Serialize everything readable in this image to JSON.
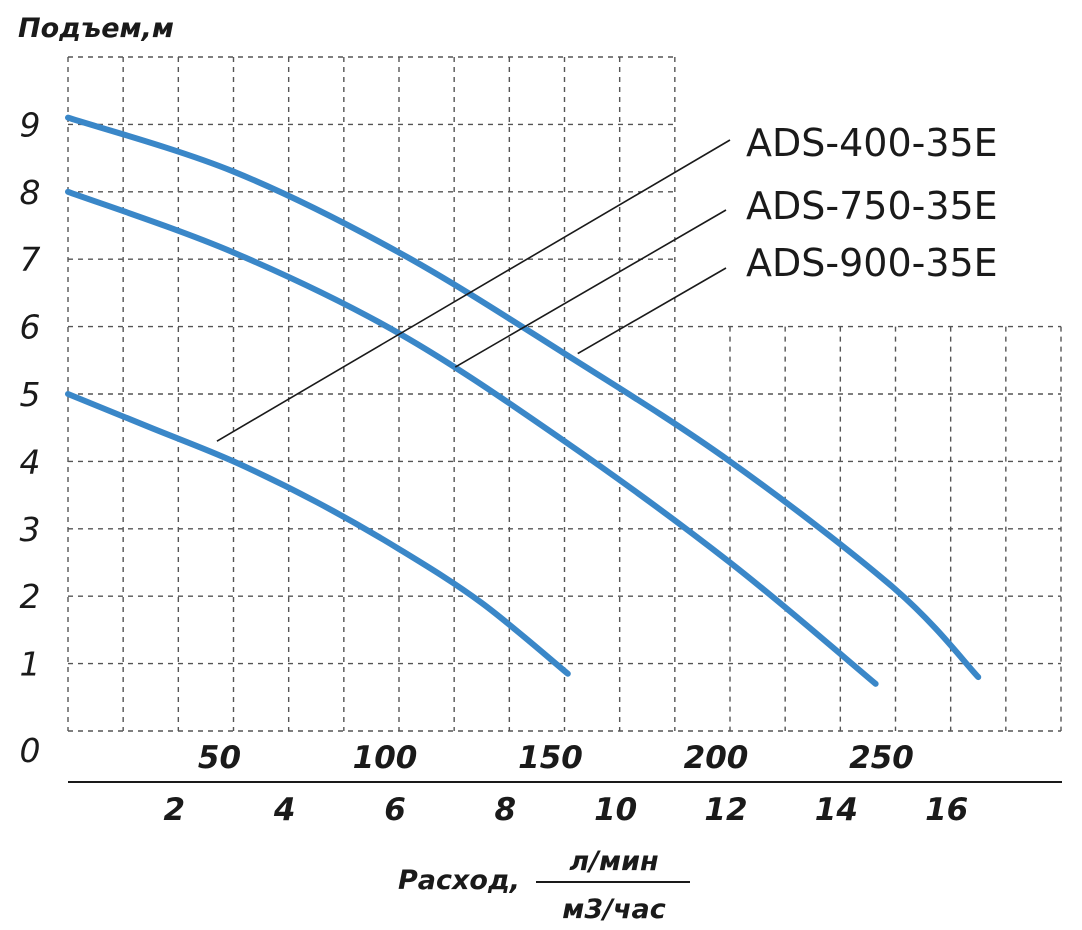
{
  "chart_data": {
    "type": "line",
    "ylabel": "Подъем,м",
    "xlabel": "Расход,",
    "xunit_top": "л/мин",
    "xunit_bottom": "м3/час",
    "y_ticks": [
      "0",
      "1",
      "2",
      "3",
      "4",
      "5",
      "6",
      "7",
      "8",
      "9"
    ],
    "ylim": [
      0,
      10
    ],
    "x_lpm_ticks": [
      50,
      100,
      150,
      200,
      250
    ],
    "x_m3h_ticks": [
      2,
      4,
      6,
      8,
      10,
      12,
      14,
      16
    ],
    "xlim_lpm": [
      0,
      300
    ],
    "grid": true,
    "line_color": "#3a87c8",
    "series": [
      {
        "name": "ADS-400-35E",
        "x": [
          0,
          25,
          50,
          75,
          100,
          125,
          151
        ],
        "y": [
          5.0,
          4.5,
          4.0,
          3.4,
          2.7,
          1.9,
          0.85
        ]
      },
      {
        "name": "ADS-750-35E",
        "x": [
          0,
          50,
          100,
          150,
          200,
          244
        ],
        "y": [
          8.0,
          7.1,
          5.9,
          4.3,
          2.5,
          0.7
        ]
      },
      {
        "name": "ADS-900-35E",
        "x": [
          0,
          50,
          100,
          150,
          200,
          250,
          275
        ],
        "y": [
          9.1,
          8.3,
          7.1,
          5.6,
          4.0,
          2.1,
          0.8
        ]
      }
    ]
  }
}
